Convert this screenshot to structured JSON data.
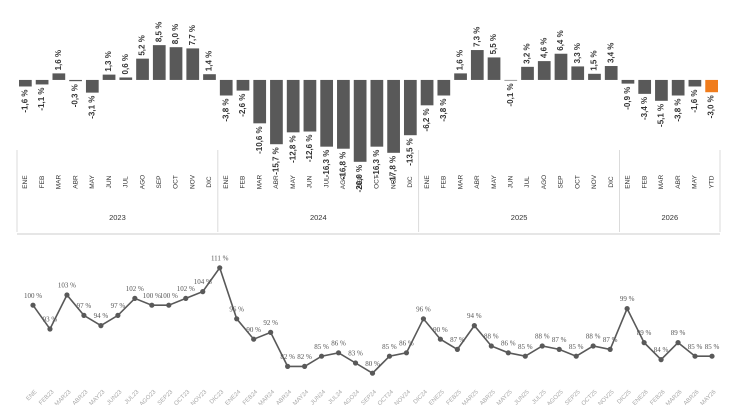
{
  "chart_data": [
    {
      "type": "bar",
      "groups": [
        {
          "label": "2023",
          "months": [
            "ENE",
            "FEB",
            "MAR",
            "ABR",
            "MAY",
            "JUN",
            "JUL",
            "AGO",
            "SEP",
            "OCT",
            "NOV",
            "DIC"
          ]
        },
        {
          "label": "2024",
          "months": [
            "ENE",
            "FEB",
            "MAR",
            "ABR",
            "MAY",
            "JUN",
            "JUL",
            "AGO",
            "SEP",
            "OCT",
            "NOV",
            "DIC"
          ]
        },
        {
          "label": "2025",
          "months": [
            "ENE",
            "FEB",
            "MAR",
            "ABR",
            "MAY",
            "JUN",
            "JUL",
            "AGO",
            "SEP",
            "OCT",
            "NOV",
            "DIC"
          ]
        },
        {
          "label": "2026",
          "months": [
            "ENE",
            "FEB",
            "MAR",
            "ABR",
            "MAY",
            "YTD"
          ]
        }
      ],
      "values": [
        -1.6,
        -1.1,
        1.6,
        -0.3,
        -3.1,
        1.3,
        0.6,
        5.2,
        8.5,
        8.0,
        7.7,
        1.4,
        -3.8,
        -2.6,
        -10.6,
        -15.7,
        -12.8,
        -12.6,
        -16.3,
        -16.8,
        -20.0,
        -16.3,
        -17.8,
        -13.5,
        -6.2,
        -3.8,
        1.6,
        7.3,
        5.5,
        -0.1,
        3.2,
        4.6,
        6.4,
        3.3,
        1.5,
        3.4,
        -0.9,
        -3.4,
        -5.1,
        -3.8,
        -1.6,
        -3.0
      ],
      "value_labels": [
        "-1,6 %",
        "-1,1 %",
        "1,6 %",
        "-0,3 %",
        "-3,1 %",
        "1,3 %",
        "0,6 %",
        "5,2 %",
        "8,5 %",
        "8,0 %",
        "7,7 %",
        "1,4 %",
        "-3,8 %",
        "-2,6 %",
        "-10,6 %",
        "-15,7 %",
        "-12,8 %",
        "-12,6 %",
        "-16,3 %",
        "-16,8 %",
        "-20,0 %",
        "-16,3 %",
        "-17,8 %",
        "-13,5 %",
        "-6,2 %",
        "-3,8 %",
        "1,6 %",
        "7,3 %",
        "5,5 %",
        "-0,1 %",
        "3,2 %",
        "4,6 %",
        "6,4 %",
        "3,3 %",
        "1,5 %",
        "3,4 %",
        "-0,9 %",
        "-3,4 %",
        "-5,1 %",
        "-3,8 %",
        "-1,6 %",
        "-3,0 %"
      ],
      "color": "#595959",
      "highlight_color": "#f07c1c",
      "highlight": "YTD",
      "ylim": [
        -22,
        10
      ]
    },
    {
      "type": "line",
      "x": [
        "ENE",
        "FEB23",
        "MAR23",
        "ABR23",
        "MAY23",
        "JUN23",
        "JUL23",
        "AGO23",
        "SEP23",
        "OCT23",
        "NOV23",
        "DIC23",
        "ENE24",
        "FEB24",
        "MAR24",
        "ABR24",
        "MAY24",
        "JUN24",
        "JUL24",
        "AGO24",
        "SEP24",
        "OCT24",
        "NOV24",
        "DIC24",
        "ENE25",
        "FEB25",
        "MAR25",
        "ABR25",
        "MAY25",
        "JUN25",
        "JUL25",
        "AGO25",
        "SEP25",
        "OCT25",
        "NOV25",
        "DIC25",
        "ENE26",
        "FEB26",
        "MAR26",
        "ABR26",
        "MAY26"
      ],
      "values": [
        100,
        93,
        103,
        97,
        94,
        97,
        102,
        100,
        100,
        102,
        104,
        111,
        96,
        90,
        92,
        82,
        82,
        85,
        86,
        83,
        80,
        85,
        86,
        96,
        90,
        87,
        94,
        88,
        86,
        85,
        88,
        87,
        85,
        88,
        87,
        99,
        89,
        84,
        89,
        85,
        85
      ],
      "value_labels": [
        "100 %",
        "93 %",
        "103 %",
        "97 %",
        "94 %",
        "97 %",
        "102 %",
        "100 %",
        "100 %",
        "102 %",
        "104 %",
        "111 %",
        "96 %",
        "90 %",
        "92 %",
        "82 %",
        "82 %",
        "85 %",
        "86 %",
        "83 %",
        "80 %",
        "85 %",
        "86 %",
        "96 %",
        "90 %",
        "87 %",
        "94 %",
        "88 %",
        "86 %",
        "85 %",
        "88 %",
        "87 %",
        "85 %",
        "88 %",
        "87 %",
        "99 %",
        "89 %",
        "84 %",
        "89 %",
        "85 %",
        "85 %"
      ],
      "color": "#595959",
      "ylim": [
        78,
        113
      ]
    }
  ]
}
